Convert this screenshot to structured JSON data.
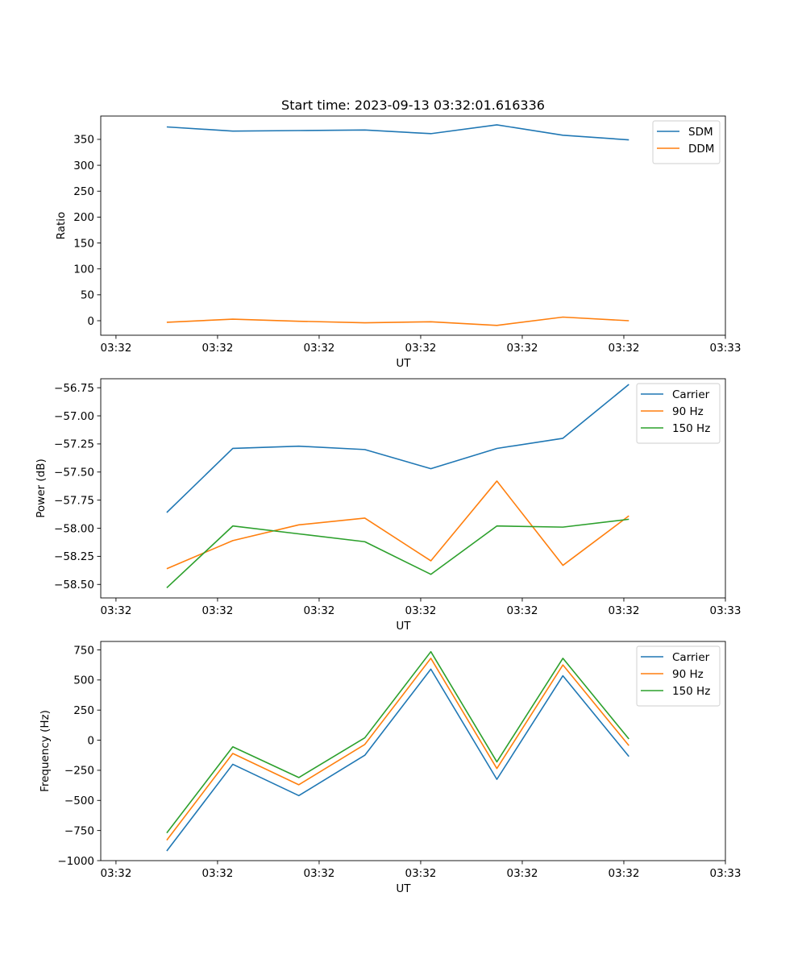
{
  "figure_title": "Start time: 2023-09-13 03:32:01.616336",
  "series_colors": {
    "SDM": "#1f77b4",
    "DDM": "#ff7f0e",
    "Carrier": "#1f77b4",
    "90 Hz": "#ff7f0e",
    "150 Hz": "#2ca02c"
  },
  "chart_data": [
    {
      "type": "line",
      "title": "Start time: 2023-09-13 03:32:01.616336",
      "xlabel": "UT",
      "ylabel": "Ratio",
      "x": [
        0.5,
        1.15,
        1.8,
        2.45,
        3.1,
        3.75,
        4.4,
        5.05
      ],
      "xlim": [
        -0.15,
        6.0
      ],
      "xticks": [
        0,
        1,
        2,
        3,
        4,
        5,
        6
      ],
      "xtick_labels": [
        "03:32",
        "03:32",
        "03:32",
        "03:32",
        "03:32",
        "03:32",
        "03:33"
      ],
      "ylim": [
        -28,
        395
      ],
      "yticks": [
        0,
        50,
        100,
        150,
        200,
        250,
        300,
        350
      ],
      "ytick_labels": [
        "0",
        "50",
        "100",
        "150",
        "200",
        "250",
        "300",
        "350"
      ],
      "legend_position": "top-right",
      "series": [
        {
          "name": "SDM",
          "values": [
            374,
            366,
            367,
            368,
            361,
            378,
            358,
            349
          ]
        },
        {
          "name": "DDM",
          "values": [
            -3,
            3,
            -1,
            -4,
            -2,
            -9,
            7,
            0
          ]
        }
      ]
    },
    {
      "type": "line",
      "title": "",
      "xlabel": "UT",
      "ylabel": "Power (dB)",
      "x": [
        0.5,
        1.15,
        1.8,
        2.45,
        3.1,
        3.75,
        4.4,
        5.05
      ],
      "xlim": [
        -0.15,
        6.0
      ],
      "xticks": [
        0,
        1,
        2,
        3,
        4,
        5,
        6
      ],
      "xtick_labels": [
        "03:32",
        "03:32",
        "03:32",
        "03:32",
        "03:32",
        "03:32",
        "03:33"
      ],
      "ylim": [
        -58.62,
        -56.67
      ],
      "yticks": [
        -58.5,
        -58.25,
        -58.0,
        -57.75,
        -57.5,
        -57.25,
        -57.0,
        -56.75
      ],
      "ytick_labels": [
        "−58.50",
        "−58.25",
        "−58.00",
        "−57.75",
        "−57.50",
        "−57.25",
        "−57.00",
        "−56.75"
      ],
      "legend_position": "top-right",
      "series": [
        {
          "name": "Carrier",
          "values": [
            -57.86,
            -57.29,
            -57.27,
            -57.3,
            -57.47,
            -57.29,
            -57.2,
            -56.72
          ]
        },
        {
          "name": "90 Hz",
          "values": [
            -58.36,
            -58.11,
            -57.97,
            -57.91,
            -58.29,
            -57.58,
            -58.33,
            -57.89
          ]
        },
        {
          "name": "150 Hz",
          "values": [
            -58.53,
            -57.98,
            -58.05,
            -58.12,
            -58.41,
            -57.98,
            -57.99,
            -57.92
          ]
        }
      ]
    },
    {
      "type": "line",
      "title": "",
      "xlabel": "UT",
      "ylabel": "Frequency (Hz)",
      "x": [
        0.5,
        1.15,
        1.8,
        2.45,
        3.1,
        3.75,
        4.4,
        5.05
      ],
      "xlim": [
        -0.15,
        6.0
      ],
      "xticks": [
        0,
        1,
        2,
        3,
        4,
        5,
        6
      ],
      "xtick_labels": [
        "03:32",
        "03:32",
        "03:32",
        "03:32",
        "03:32",
        "03:32",
        "03:33"
      ],
      "ylim": [
        -1000,
        820
      ],
      "yticks": [
        -1000,
        -750,
        -500,
        -250,
        0,
        250,
        500,
        750
      ],
      "ytick_labels": [
        "−1000",
        "−750",
        "−500",
        "−250",
        "0",
        "250",
        "500",
        "750"
      ],
      "legend_position": "top-right",
      "series": [
        {
          "name": "Carrier",
          "values": [
            -920,
            -200,
            -460,
            -125,
            590,
            -325,
            535,
            -135
          ]
        },
        {
          "name": "90 Hz",
          "values": [
            -830,
            -110,
            -370,
            -35,
            680,
            -235,
            625,
            -45
          ]
        },
        {
          "name": "150 Hz",
          "values": [
            -770,
            -55,
            -310,
            20,
            735,
            -180,
            680,
            10
          ]
        }
      ]
    }
  ]
}
